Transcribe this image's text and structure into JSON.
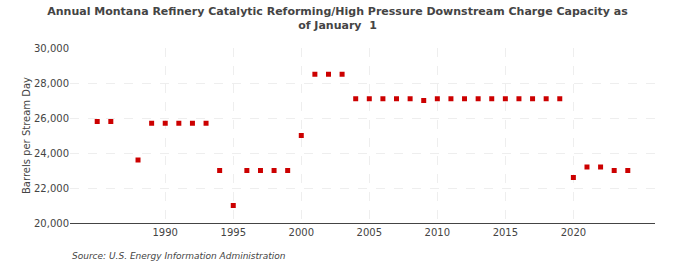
{
  "chart_data": {
    "type": "scatter",
    "title": "Annual Montana Refinery Catalytic Reforming/High Pressure Downstream Charge Capacity as\nof January  1",
    "ylabel": "Barrels per Stream Day",
    "source": "Source: U.S. Energy Information Administration",
    "color": "#cc0000",
    "marker": "square",
    "grid": true,
    "x": [
      1985,
      1986,
      1988,
      1989,
      1990,
      1991,
      1992,
      1993,
      1994,
      1995,
      1996,
      1997,
      1998,
      1999,
      2000,
      2001,
      2002,
      2003,
      2004,
      2005,
      2006,
      2007,
      2008,
      2009,
      2010,
      2011,
      2012,
      2013,
      2014,
      2015,
      2016,
      2017,
      2018,
      2019,
      2020,
      2021,
      2022,
      2023,
      2024
    ],
    "values": [
      25800,
      25800,
      23600,
      25700,
      25700,
      25700,
      25700,
      25700,
      23000,
      21000,
      23000,
      23000,
      23000,
      23000,
      25000,
      28500,
      28500,
      28500,
      27100,
      27100,
      27100,
      27100,
      27100,
      27000,
      27100,
      27100,
      27100,
      27100,
      27100,
      27100,
      27100,
      27100,
      27100,
      27100,
      22600,
      23200,
      23200,
      23000,
      23000
    ],
    "xlim": [
      1983,
      2026
    ],
    "xticks": [
      1990,
      1995,
      2000,
      2005,
      2010,
      2015,
      2020
    ],
    "ylim": [
      20000,
      30000
    ],
    "yticks": [
      {
        "value": 20000,
        "label": "20,000"
      },
      {
        "value": 22000,
        "label": "22,000"
      },
      {
        "value": 24000,
        "label": "24,000"
      },
      {
        "value": 26000,
        "label": "26,000"
      },
      {
        "value": 28000,
        "label": "28,000"
      },
      {
        "value": 30000,
        "label": "30,000"
      }
    ]
  }
}
